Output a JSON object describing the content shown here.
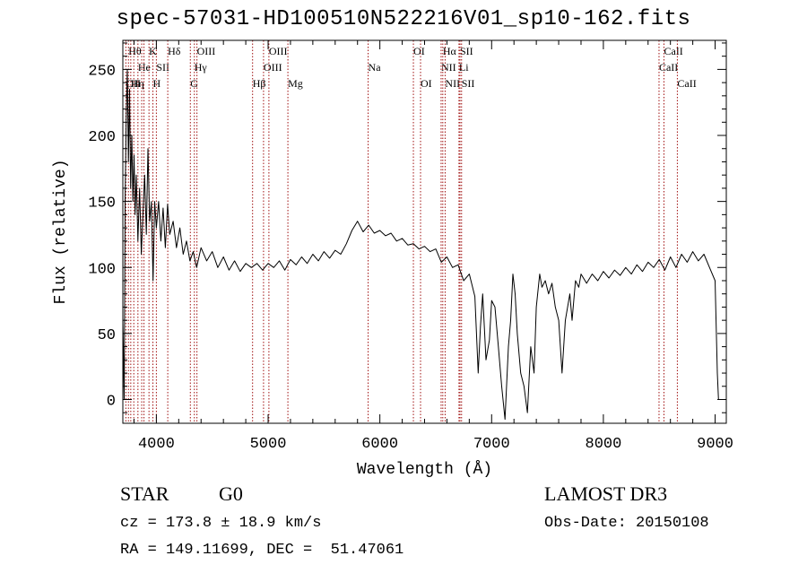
{
  "title": "spec-57031-HD100510N522216V01_sp10-162.fits",
  "info": {
    "class_label": "STAR",
    "subclass": "G0",
    "survey": "LAMOST DR3",
    "cz": "cz = 173.8 ± 18.9 km/s",
    "obs_date": "Obs-Date: 20150108",
    "coords": "RA = 149.11699, DEC =  51.47061"
  },
  "chart_data": {
    "type": "line",
    "title": "spec-57031-HD100510N522216V01_sp10-162.fits",
    "xlabel": "Wavelength (Å)",
    "ylabel": "Flux (relative)",
    "xlim": [
      3700,
      9100
    ],
    "ylim": [
      -18,
      272
    ],
    "xticks": [
      4000,
      5000,
      6000,
      7000,
      8000,
      9000
    ],
    "yticks": [
      0,
      50,
      100,
      150,
      200,
      250
    ],
    "grid": false,
    "line_color": "#000000",
    "marker_color": "#a01010",
    "series": [
      {
        "points": [
          [
            3700,
            60
          ],
          [
            3712,
            0
          ],
          [
            3720,
            150
          ],
          [
            3730,
            210
          ],
          [
            3740,
            250
          ],
          [
            3750,
            180
          ],
          [
            3760,
            235
          ],
          [
            3770,
            160
          ],
          [
            3780,
            200
          ],
          [
            3790,
            150
          ],
          [
            3800,
            185
          ],
          [
            3810,
            140
          ],
          [
            3820,
            170
          ],
          [
            3835,
            120
          ],
          [
            3850,
            160
          ],
          [
            3865,
            110
          ],
          [
            3880,
            140
          ],
          [
            3895,
            170
          ],
          [
            3910,
            125
          ],
          [
            3925,
            190
          ],
          [
            3940,
            135
          ],
          [
            3955,
            150
          ],
          [
            3970,
            90
          ],
          [
            3985,
            150
          ],
          [
            4000,
            130
          ],
          [
            4020,
            150
          ],
          [
            4040,
            120
          ],
          [
            4060,
            145
          ],
          [
            4080,
            115
          ],
          [
            4100,
            148
          ],
          [
            4120,
            125
          ],
          [
            4150,
            135
          ],
          [
            4180,
            115
          ],
          [
            4210,
            130
          ],
          [
            4240,
            110
          ],
          [
            4270,
            120
          ],
          [
            4300,
            105
          ],
          [
            4330,
            112
          ],
          [
            4360,
            100
          ],
          [
            4400,
            115
          ],
          [
            4450,
            105
          ],
          [
            4500,
            112
          ],
          [
            4550,
            100
          ],
          [
            4600,
            108
          ],
          [
            4650,
            98
          ],
          [
            4700,
            105
          ],
          [
            4750,
            97
          ],
          [
            4800,
            103
          ],
          [
            4850,
            100
          ],
          [
            4900,
            103
          ],
          [
            4950,
            98
          ],
          [
            5000,
            103
          ],
          [
            5050,
            100
          ],
          [
            5100,
            105
          ],
          [
            5150,
            98
          ],
          [
            5200,
            106
          ],
          [
            5250,
            102
          ],
          [
            5300,
            108
          ],
          [
            5350,
            103
          ],
          [
            5400,
            110
          ],
          [
            5450,
            105
          ],
          [
            5500,
            112
          ],
          [
            5550,
            107
          ],
          [
            5600,
            113
          ],
          [
            5650,
            110
          ],
          [
            5700,
            118
          ],
          [
            5750,
            128
          ],
          [
            5800,
            135
          ],
          [
            5850,
            127
          ],
          [
            5900,
            132
          ],
          [
            5950,
            126
          ],
          [
            6000,
            128
          ],
          [
            6050,
            124
          ],
          [
            6100,
            126
          ],
          [
            6150,
            120
          ],
          [
            6200,
            122
          ],
          [
            6250,
            117
          ],
          [
            6300,
            118
          ],
          [
            6350,
            114
          ],
          [
            6400,
            116
          ],
          [
            6450,
            112
          ],
          [
            6500,
            114
          ],
          [
            6550,
            104
          ],
          [
            6600,
            108
          ],
          [
            6650,
            100
          ],
          [
            6700,
            102
          ],
          [
            6750,
            90
          ],
          [
            6800,
            95
          ],
          [
            6850,
            78
          ],
          [
            6880,
            20
          ],
          [
            6900,
            55
          ],
          [
            6920,
            80
          ],
          [
            6950,
            30
          ],
          [
            6980,
            45
          ],
          [
            7000,
            75
          ],
          [
            7030,
            70
          ],
          [
            7060,
            40
          ],
          [
            7090,
            10
          ],
          [
            7120,
            -15
          ],
          [
            7150,
            40
          ],
          [
            7170,
            60
          ],
          [
            7190,
            95
          ],
          [
            7210,
            80
          ],
          [
            7230,
            50
          ],
          [
            7260,
            20
          ],
          [
            7290,
            10
          ],
          [
            7320,
            -10
          ],
          [
            7350,
            40
          ],
          [
            7380,
            20
          ],
          [
            7400,
            70
          ],
          [
            7430,
            95
          ],
          [
            7450,
            85
          ],
          [
            7480,
            90
          ],
          [
            7510,
            80
          ],
          [
            7540,
            88
          ],
          [
            7570,
            70
          ],
          [
            7600,
            60
          ],
          [
            7630,
            20
          ],
          [
            7660,
            60
          ],
          [
            7700,
            80
          ],
          [
            7720,
            60
          ],
          [
            7750,
            90
          ],
          [
            7780,
            85
          ],
          [
            7800,
            95
          ],
          [
            7850,
            88
          ],
          [
            7900,
            95
          ],
          [
            7950,
            90
          ],
          [
            8000,
            97
          ],
          [
            8050,
            92
          ],
          [
            8100,
            98
          ],
          [
            8150,
            94
          ],
          [
            8200,
            100
          ],
          [
            8250,
            95
          ],
          [
            8300,
            102
          ],
          [
            8350,
            97
          ],
          [
            8400,
            104
          ],
          [
            8450,
            100
          ],
          [
            8500,
            106
          ],
          [
            8550,
            98
          ],
          [
            8600,
            108
          ],
          [
            8650,
            100
          ],
          [
            8700,
            110
          ],
          [
            8750,
            104
          ],
          [
            8800,
            112
          ],
          [
            8850,
            105
          ],
          [
            8900,
            110
          ],
          [
            8950,
            100
          ],
          [
            9000,
            90
          ],
          [
            9020,
            20
          ],
          [
            9030,
            0
          ]
        ]
      }
    ],
    "line_markers": [
      {
        "x": 3727,
        "label": "OII",
        "row": 2,
        "anchor": "center"
      },
      {
        "x": 3750,
        "label": "Hθ",
        "row": 0,
        "anchor": "start"
      },
      {
        "x": 3771,
        "label": "Hη",
        "row": 2,
        "anchor": "start"
      },
      {
        "x": 3798,
        "label": "",
        "row": 1,
        "anchor": "center"
      },
      {
        "x": 3835,
        "label": "He",
        "row": 1,
        "anchor": "start"
      },
      {
        "x": 3869,
        "label": "",
        "row": 1,
        "anchor": "center"
      },
      {
        "x": 3889,
        "label": "",
        "row": 1,
        "anchor": "center"
      },
      {
        "x": 3934,
        "label": "K",
        "row": 0,
        "anchor": "center"
      },
      {
        "x": 3969,
        "label": "H",
        "row": 2,
        "anchor": "center"
      },
      {
        "x": 4000,
        "label": "SII",
        "row": 1,
        "anchor": "center"
      },
      {
        "x": 4102,
        "label": "Hδ",
        "row": 0,
        "anchor": "center"
      },
      {
        "x": 4304,
        "label": "G",
        "row": 2,
        "anchor": "center"
      },
      {
        "x": 4340,
        "label": "Hγ",
        "row": 1,
        "anchor": "center"
      },
      {
        "x": 4363,
        "label": "OIII",
        "row": 0,
        "anchor": "center"
      },
      {
        "x": 4861,
        "label": "Hβ",
        "row": 2,
        "anchor": "center"
      },
      {
        "x": 4959,
        "label": "OIII",
        "row": 1,
        "anchor": "center"
      },
      {
        "x": 5007,
        "label": "OIII",
        "row": 0,
        "anchor": "center"
      },
      {
        "x": 5177,
        "label": "Mg",
        "row": 2,
        "anchor": "center"
      },
      {
        "x": 5895,
        "label": "Na",
        "row": 1,
        "anchor": "center"
      },
      {
        "x": 6300,
        "label": "OI",
        "row": 0,
        "anchor": "center"
      },
      {
        "x": 6364,
        "label": "OI",
        "row": 2,
        "anchor": "center"
      },
      {
        "x": 6548,
        "label": "NII",
        "row": 1,
        "anchor": "center"
      },
      {
        "x": 6563,
        "label": "Hα",
        "row": 0,
        "anchor": "center"
      },
      {
        "x": 6584,
        "label": "NII",
        "row": 2,
        "anchor": "center"
      },
      {
        "x": 6708,
        "label": "Li",
        "row": 1,
        "anchor": "center"
      },
      {
        "x": 6717,
        "label": "SII",
        "row": 0,
        "anchor": "center"
      },
      {
        "x": 6731,
        "label": "SII",
        "row": 2,
        "anchor": "center"
      },
      {
        "x": 8498,
        "label": "CaII",
        "row": 1,
        "anchor": "center"
      },
      {
        "x": 8542,
        "label": "CaII",
        "row": 0,
        "anchor": "center"
      },
      {
        "x": 8662,
        "label": "CaII",
        "row": 2,
        "anchor": "center"
      }
    ]
  }
}
